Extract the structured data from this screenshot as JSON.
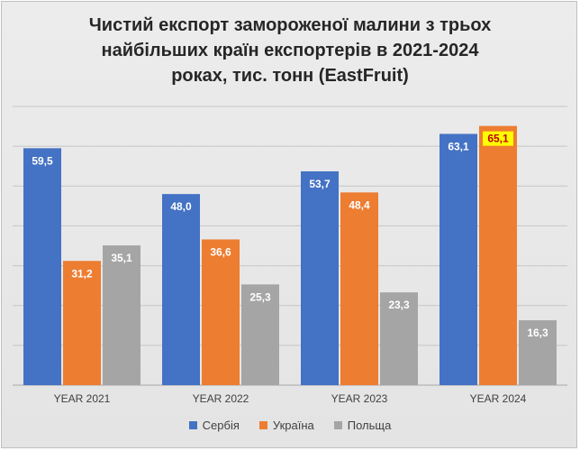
{
  "chart_data": {
    "type": "bar",
    "title_lines": [
      "Чистий експорт замороженої малини з трьох",
      "найбільших країн експортерів в 2021-2024",
      "роках, тис. тонн (EastFruit)"
    ],
    "categories": [
      "YEAR 2021",
      "YEAR 2022",
      "YEAR 2023",
      "YEAR 2024"
    ],
    "series": [
      {
        "name": "Сербія",
        "color": "#4472c4",
        "values": [
          59.5,
          48.0,
          53.7,
          63.1
        ],
        "labels": [
          "59,5",
          "48,0",
          "53,7",
          "63,1"
        ]
      },
      {
        "name": "Україна",
        "color": "#ed7d31",
        "values": [
          31.2,
          36.6,
          48.4,
          65.1
        ],
        "labels": [
          "31,2",
          "36,6",
          "48,4",
          "65,1"
        ]
      },
      {
        "name": "Польща",
        "color": "#a5a5a5",
        "values": [
          35.1,
          25.3,
          23.3,
          16.3
        ],
        "labels": [
          "35,1",
          "25,3",
          "23,3",
          "16,3"
        ]
      }
    ],
    "highlighted_label": {
      "series": 1,
      "category": 3,
      "background": "#ffff00",
      "text_color": "#c00000"
    },
    "ylim": [
      0,
      70
    ],
    "grid": true,
    "legend_position": "bottom"
  }
}
